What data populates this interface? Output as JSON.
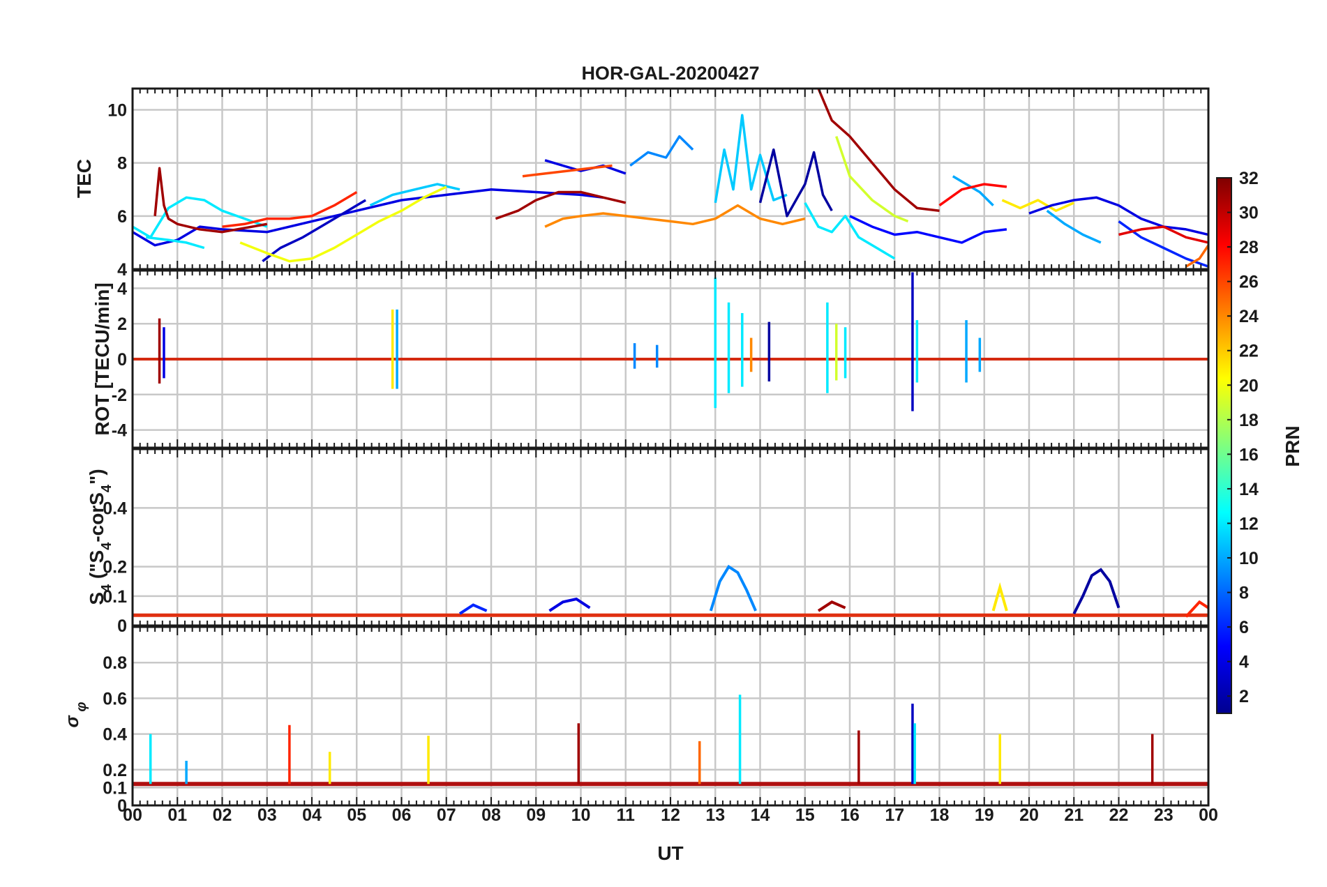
{
  "chart_data": {
    "type": "line",
    "title": "HOR-GAL-20200427",
    "xlabel": "UT",
    "x_ticks": [
      "00",
      "01",
      "02",
      "03",
      "04",
      "05",
      "06",
      "07",
      "08",
      "09",
      "10",
      "11",
      "12",
      "13",
      "14",
      "15",
      "16",
      "17",
      "18",
      "19",
      "20",
      "21",
      "22",
      "23",
      "00"
    ],
    "xlim": [
      0,
      24
    ],
    "grid": true,
    "colorbar": {
      "label": "PRN",
      "range": [
        1,
        32
      ],
      "ticks": [
        "2",
        "4",
        "6",
        "8",
        "10",
        "12",
        "14",
        "16",
        "18",
        "20",
        "22",
        "24",
        "26",
        "28",
        "30",
        "32"
      ],
      "colormap": "jet"
    },
    "panels": [
      {
        "ylabel": "TEC",
        "ylim": [
          4,
          10.8
        ],
        "y_ticks": [
          "4",
          "6",
          "8",
          "10"
        ],
        "y_tick_values": [
          4,
          6,
          8,
          10
        ],
        "series": [
          {
            "prn": 4,
            "x": [
              0,
              0.5,
              1,
              1.5,
              2,
              3,
              4,
              5,
              6,
              7,
              8,
              9,
              10,
              10.5
            ],
            "y": [
              5.4,
              4.9,
              5.1,
              5.6,
              5.5,
              5.4,
              5.8,
              6.2,
              6.6,
              6.8,
              7.0,
              6.9,
              6.8,
              6.7
            ]
          },
          {
            "prn": 4,
            "x": [
              9.2,
              9.6,
              10,
              10.5,
              11
            ],
            "y": [
              8.1,
              7.9,
              7.7,
              7.9,
              7.6
            ]
          },
          {
            "prn": 3,
            "x": [
              2.9,
              3.3,
              3.8,
              4.3,
              4.8,
              5.2
            ],
            "y": [
              4.3,
              4.8,
              5.2,
              5.7,
              6.2,
              6.6
            ]
          },
          {
            "prn": 12,
            "x": [
              0,
              0.4,
              0.8,
              1.2,
              1.6,
              2,
              2.5,
              3
            ],
            "y": [
              5.6,
              5.2,
              6.3,
              6.7,
              6.6,
              6.2,
              5.9,
              5.6
            ]
          },
          {
            "prn": 12,
            "x": [
              0.3,
              0.8,
              1.2,
              1.6
            ],
            "y": [
              5.2,
              5.1,
              5.0,
              4.8
            ]
          },
          {
            "prn": 11,
            "x": [
              5.3,
              5.8,
              6.3,
              6.8,
              7.3
            ],
            "y": [
              6.4,
              6.8,
              7.0,
              7.2,
              7.0
            ]
          },
          {
            "prn": 9,
            "x": [
              11.1,
              11.5,
              11.9,
              12.2,
              12.5
            ],
            "y": [
              7.9,
              8.4,
              8.2,
              9.0,
              8.5
            ]
          },
          {
            "prn": 31,
            "x": [
              0.5,
              0.6,
              0.7,
              0.8,
              1,
              1.5,
              2,
              3
            ],
            "y": [
              6.0,
              7.8,
              6.4,
              5.9,
              5.7,
              5.5,
              5.4,
              5.7
            ]
          },
          {
            "prn": 27,
            "x": [
              2,
              2.5,
              3,
              3.5,
              4,
              4.5,
              5
            ],
            "y": [
              5.6,
              5.7,
              5.9,
              5.9,
              6.0,
              6.4,
              6.9
            ]
          },
          {
            "prn": 20,
            "x": [
              2.4,
              3,
              3.5,
              4,
              4.5,
              5,
              5.5,
              6,
              6.5,
              7
            ],
            "y": [
              5.0,
              4.6,
              4.3,
              4.4,
              4.8,
              5.3,
              5.8,
              6.2,
              6.7,
              7.1
            ]
          },
          {
            "prn": 26,
            "x": [
              8.7,
              9.2,
              9.7,
              10.2,
              10.7
            ],
            "y": [
              7.5,
              7.6,
              7.7,
              7.8,
              7.9
            ]
          },
          {
            "prn": 31,
            "x": [
              8.1,
              8.6,
              9,
              9.5,
              10,
              10.5,
              11
            ],
            "y": [
              5.9,
              6.2,
              6.6,
              6.9,
              6.9,
              6.7,
              6.5
            ]
          },
          {
            "prn": 24,
            "x": [
              9.2,
              9.6,
              10,
              10.5,
              11,
              11.5,
              12,
              12.5,
              13,
              13.5,
              14,
              14.5,
              15
            ],
            "y": [
              5.6,
              5.9,
              6.0,
              6.1,
              6.0,
              5.9,
              5.8,
              5.7,
              5.9,
              6.4,
              5.9,
              5.7,
              5.9
            ]
          },
          {
            "prn": 11,
            "x": [
              13,
              13.2,
              13.4,
              13.6,
              13.8,
              14,
              14.3,
              14.6
            ],
            "y": [
              6.5,
              8.5,
              7.0,
              9.8,
              7.0,
              8.3,
              6.6,
              6.8
            ]
          },
          {
            "prn": 2,
            "x": [
              14,
              14.3,
              14.6,
              15,
              15.2,
              15.4,
              15.6
            ],
            "y": [
              6.5,
              8.5,
              6.0,
              7.2,
              8.4,
              6.8,
              6.2
            ]
          },
          {
            "prn": 12,
            "x": [
              15,
              15.3,
              15.6,
              15.9,
              16.2,
              16.6,
              17
            ],
            "y": [
              6.5,
              5.6,
              5.4,
              6.0,
              5.2,
              4.8,
              4.4
            ]
          },
          {
            "prn": 31,
            "x": [
              15.3,
              15.6,
              16,
              16.5,
              17,
              17.5,
              18
            ],
            "y": [
              10.8,
              9.6,
              9.0,
              8.0,
              7.0,
              6.3,
              6.2
            ]
          },
          {
            "prn": 5,
            "x": [
              16,
              16.5,
              17,
              17.5,
              18,
              18.5,
              19,
              19.5
            ],
            "y": [
              6.0,
              5.6,
              5.3,
              5.4,
              5.2,
              5.0,
              5.4,
              5.5
            ]
          },
          {
            "prn": 19,
            "x": [
              15.7,
              16,
              16.5,
              17,
              17.3
            ],
            "y": [
              9.0,
              7.5,
              6.6,
              6.0,
              5.8
            ]
          },
          {
            "prn": 10,
            "x": [
              18.3,
              18.6,
              18.9,
              19.2
            ],
            "y": [
              7.5,
              7.2,
              6.9,
              6.4
            ]
          },
          {
            "prn": 28,
            "x": [
              18,
              18.5,
              19,
              19.5
            ],
            "y": [
              6.4,
              7.0,
              7.2,
              7.1
            ]
          },
          {
            "prn": 21,
            "x": [
              19.4,
              19.8,
              20.2,
              20.6,
              21
            ],
            "y": [
              6.6,
              6.3,
              6.6,
              6.2,
              6.5
            ]
          },
          {
            "prn": 4,
            "x": [
              20,
              20.5,
              21,
              21.5,
              22,
              22.5,
              23,
              23.5,
              24
            ],
            "y": [
              6.1,
              6.4,
              6.6,
              6.7,
              6.4,
              5.9,
              5.6,
              5.5,
              5.3
            ]
          },
          {
            "prn": 10,
            "x": [
              20.4,
              20.8,
              21.2,
              21.6
            ],
            "y": [
              6.2,
              5.7,
              5.3,
              5.0
            ]
          },
          {
            "prn": 6,
            "x": [
              22,
              22.5,
              23,
              23.5,
              24
            ],
            "y": [
              5.8,
              5.2,
              4.8,
              4.4,
              4.1
            ]
          },
          {
            "prn": 29,
            "x": [
              22,
              22.5,
              23,
              23.5,
              24
            ],
            "y": [
              5.3,
              5.5,
              5.6,
              5.2,
              5.0
            ]
          },
          {
            "prn": 25,
            "x": [
              23.5,
              23.8,
              24
            ],
            "y": [
              4.1,
              4.4,
              4.9
            ]
          }
        ]
      },
      {
        "ylabel": "ROT [TECU/min]",
        "ylim": [
          -5,
          5
        ],
        "y_ticks": [
          "-4",
          "-2",
          "0",
          "2",
          "4"
        ],
        "y_tick_values": [
          -4,
          -2,
          0,
          2,
          4
        ],
        "spikes": [
          {
            "x": 0.6,
            "amp": 2.3,
            "prn": 31
          },
          {
            "x": 0.7,
            "amp": 1.8,
            "prn": 4
          },
          {
            "x": 5.8,
            "amp": 2.8,
            "prn": 21
          },
          {
            "x": 5.9,
            "amp": 2.8,
            "prn": 10
          },
          {
            "x": 11.2,
            "amp": 0.9,
            "prn": 9
          },
          {
            "x": 11.7,
            "amp": 0.8,
            "prn": 9
          },
          {
            "x": 13.0,
            "amp": 4.6,
            "prn": 12
          },
          {
            "x": 13.3,
            "amp": 3.2,
            "prn": 12
          },
          {
            "x": 13.6,
            "amp": 2.6,
            "prn": 12
          },
          {
            "x": 13.8,
            "amp": 1.2,
            "prn": 24
          },
          {
            "x": 14.2,
            "amp": 2.1,
            "prn": 2
          },
          {
            "x": 15.5,
            "amp": 3.2,
            "prn": 12
          },
          {
            "x": 15.7,
            "amp": 2.0,
            "prn": 19
          },
          {
            "x": 15.9,
            "amp": 1.8,
            "prn": 12
          },
          {
            "x": 17.4,
            "amp": 4.9,
            "prn": 3
          },
          {
            "x": 17.5,
            "amp": 2.2,
            "prn": 12
          },
          {
            "x": 18.6,
            "amp": 2.2,
            "prn": 10
          },
          {
            "x": 18.9,
            "amp": 1.2,
            "prn": 10
          }
        ]
      },
      {
        "ylabel": "S4 (\"S4-corS4\")",
        "ylim": [
          0,
          0.6
        ],
        "y_ticks": [
          "0",
          "0.1",
          "0.2",
          "0.4"
        ],
        "y_tick_values": [
          0,
          0.1,
          0.2,
          0.4
        ],
        "features": [
          {
            "x": [
              12.9,
              13.1,
              13.3,
              13.5,
              13.7,
              13.9
            ],
            "y": [
              0.05,
              0.15,
              0.2,
              0.18,
              0.12,
              0.05
            ],
            "prn": 9
          },
          {
            "x": [
              21,
              21.2,
              21.4,
              21.6,
              21.8,
              22
            ],
            "y": [
              0.04,
              0.1,
              0.17,
              0.19,
              0.15,
              0.06
            ],
            "prn": 2
          },
          {
            "x": [
              19.2,
              19.35,
              19.5
            ],
            "y": [
              0.05,
              0.13,
              0.05
            ],
            "prn": 21
          },
          {
            "x": [
              9.3,
              9.6,
              9.9,
              10.2
            ],
            "y": [
              0.05,
              0.08,
              0.09,
              0.06
            ],
            "prn": 4
          },
          {
            "x": [
              7.3,
              7.6,
              7.9
            ],
            "y": [
              0.04,
              0.07,
              0.05
            ],
            "prn": 6
          },
          {
            "x": [
              15.3,
              15.6,
              15.9
            ],
            "y": [
              0.05,
              0.08,
              0.06
            ],
            "prn": 31
          },
          {
            "x": [
              23.5,
              23.8,
              24
            ],
            "y": [
              0.03,
              0.08,
              0.06
            ],
            "prn": 27
          }
        ]
      },
      {
        "ylabel": "σφ",
        "ylim": [
          0,
          1
        ],
        "y_ticks": [
          "0",
          "0.1",
          "0.2",
          "0.4",
          "0.6",
          "0.8"
        ],
        "y_tick_values": [
          0,
          0.1,
          0.2,
          0.4,
          0.6,
          0.8
        ],
        "spikes": [
          {
            "x": 0.4,
            "y": 0.4,
            "prn": 12
          },
          {
            "x": 1.2,
            "y": 0.25,
            "prn": 10
          },
          {
            "x": 3.5,
            "y": 0.45,
            "prn": 27
          },
          {
            "x": 4.4,
            "y": 0.3,
            "prn": 21
          },
          {
            "x": 6.6,
            "y": 0.39,
            "prn": 21
          },
          {
            "x": 9.95,
            "y": 0.46,
            "prn": 31
          },
          {
            "x": 12.65,
            "y": 0.36,
            "prn": 25
          },
          {
            "x": 13.55,
            "y": 0.62,
            "prn": 12
          },
          {
            "x": 16.2,
            "y": 0.42,
            "prn": 31
          },
          {
            "x": 17.4,
            "y": 0.57,
            "prn": 3
          },
          {
            "x": 17.45,
            "y": 0.46,
            "prn": 12
          },
          {
            "x": 19.35,
            "y": 0.4,
            "prn": 21
          },
          {
            "x": 22.75,
            "y": 0.4,
            "prn": 31
          }
        ]
      }
    ]
  }
}
